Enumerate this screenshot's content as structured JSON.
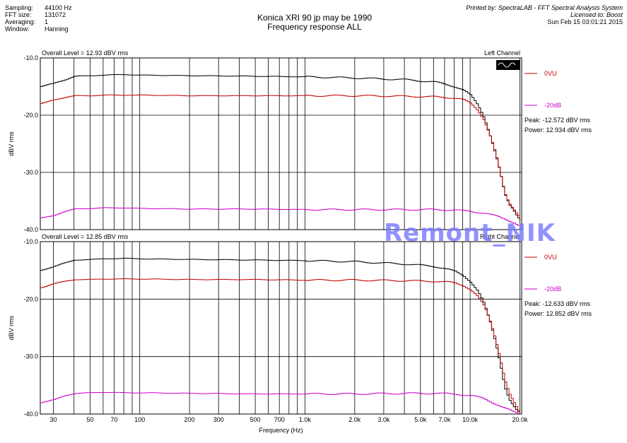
{
  "header": {
    "info": [
      {
        "label": "Sampling:",
        "value": "44100 Hz"
      },
      {
        "label": "FFT size:",
        "value": "131072"
      },
      {
        "label": "Averaging:",
        "value": "1"
      },
      {
        "label": "Window:",
        "value": "Hanning"
      }
    ],
    "title_line1": "Konica XRI 90 jp may be 1990",
    "title_line2": "Frequency response ALL",
    "printed_by": "Printed by: SpectraLAB - FFT Spectral Analysis System",
    "licensed_to": "Licensed to: Boost",
    "timestamp": "Sun Feb 15 03:01:21 2015"
  },
  "watermark": "Remont_NIK",
  "colors": {
    "black": "#000000",
    "red": "#c00000",
    "magenta": "#cc00cc",
    "grid": "#000000"
  },
  "chart_data": [
    {
      "type": "line",
      "overall_level": "Overall Level = 12.93 dBV rms",
      "channel": "Left Channel",
      "ylabel": "dBV rms",
      "xlabel": "",
      "x_scale": "log",
      "xlim": [
        25,
        20500
      ],
      "ylim": [
        -40,
        -10
      ],
      "yticks": [
        "-10.0",
        "-20.0",
        "-30.0",
        "-40.0"
      ],
      "legend": [
        {
          "name": "0VU",
          "color": "#c00000"
        },
        {
          "name": "-20dB",
          "color": "#cc00cc"
        }
      ],
      "peak": "Peak: -12.572 dBV rms",
      "power": "Power: 12.934 dBV rms",
      "series": [
        {
          "color": "#000000",
          "x": [
            25,
            30,
            35,
            40,
            50,
            60,
            80,
            100,
            200,
            500,
            1000,
            2000,
            4000,
            6000,
            7000,
            8000,
            9000,
            10000,
            11000,
            12000,
            13000,
            14000,
            15000,
            16000,
            17000,
            18000,
            19000,
            20000
          ],
          "y": [
            -15.0,
            -14.4,
            -13.8,
            -13.2,
            -13.1,
            -13.0,
            -12.9,
            -13.0,
            -13.1,
            -13.2,
            -13.3,
            -13.5,
            -13.8,
            -14.2,
            -14.6,
            -15.0,
            -15.6,
            -16.6,
            -18.2,
            -20.3,
            -23.3,
            -26.6,
            -30.0,
            -33.8,
            -35.6,
            -36.4,
            -37.5,
            -38.3
          ]
        },
        {
          "color": "#c00000",
          "x": [
            25,
            30,
            35,
            40,
            50,
            60,
            80,
            100,
            200,
            500,
            1000,
            2000,
            4000,
            6000,
            7000,
            8000,
            9000,
            10000,
            11000,
            12000,
            13000,
            14000,
            15000,
            16000,
            17000,
            18000,
            19000,
            20000
          ],
          "y": [
            -18.0,
            -17.3,
            -16.9,
            -16.6,
            -16.6,
            -16.5,
            -16.5,
            -16.5,
            -16.6,
            -16.6,
            -16.6,
            -16.6,
            -16.7,
            -16.8,
            -16.9,
            -17.0,
            -17.3,
            -18.0,
            -19.1,
            -20.8,
            -23.4,
            -26.4,
            -30.0,
            -33.6,
            -35.3,
            -36.2,
            -37.1,
            -38.0
          ]
        },
        {
          "color": "#cc00cc",
          "x": [
            25,
            30,
            35,
            40,
            50,
            60,
            80,
            100,
            200,
            500,
            1000,
            2000,
            4000,
            6000,
            8000,
            10000,
            12000,
            14000,
            16000,
            18000,
            20000
          ],
          "y": [
            -38.0,
            -37.5,
            -36.8,
            -36.4,
            -36.3,
            -36.2,
            -36.2,
            -36.3,
            -36.4,
            -36.4,
            -36.5,
            -36.5,
            -36.5,
            -36.5,
            -36.6,
            -36.8,
            -37.1,
            -37.6,
            -38.1,
            -38.7,
            -39.5
          ]
        }
      ]
    },
    {
      "type": "line",
      "overall_level": "Overall Level = 12.85 dBV rms",
      "channel": "Right Channel",
      "ylabel": "dBV rms",
      "xlabel": "Frequency (Hz)",
      "x_scale": "log",
      "xlim": [
        25,
        20500
      ],
      "ylim": [
        -40,
        -10
      ],
      "yticks": [
        "-10.0",
        "-20.0",
        "-30.0",
        "-40.0"
      ],
      "xticks": [
        {
          "v": 30,
          "t": "30"
        },
        {
          "v": 50,
          "t": "50"
        },
        {
          "v": 70,
          "t": "70"
        },
        {
          "v": 100,
          "t": "100"
        },
        {
          "v": 200,
          "t": "200"
        },
        {
          "v": 300,
          "t": "300"
        },
        {
          "v": 500,
          "t": "500"
        },
        {
          "v": 700,
          "t": "700"
        },
        {
          "v": 1000,
          "t": "1.0k"
        },
        {
          "v": 2000,
          "t": "2.0k"
        },
        {
          "v": 3000,
          "t": "3.0k"
        },
        {
          "v": 5000,
          "t": "5.0k"
        },
        {
          "v": 7000,
          "t": "7.0k"
        },
        {
          "v": 10000,
          "t": "10.0k"
        },
        {
          "v": 20000,
          "t": "20.0k"
        }
      ],
      "legend": [
        {
          "name": "0VU",
          "color": "#c00000"
        },
        {
          "name": "-20dB",
          "color": "#cc00cc"
        }
      ],
      "peak": "Peak: -12.633 dBV rms",
      "power": "Power: 12.852 dBV rms",
      "series": [
        {
          "color": "#000000",
          "x": [
            25,
            30,
            35,
            40,
            50,
            60,
            80,
            100,
            200,
            500,
            1000,
            2000,
            4000,
            6000,
            7000,
            8000,
            9000,
            10000,
            11000,
            12000,
            13000,
            14000,
            15000,
            16000,
            17000,
            18000,
            19000,
            20000
          ],
          "y": [
            -15.0,
            -14.3,
            -13.7,
            -13.2,
            -13.1,
            -13.0,
            -12.9,
            -13.0,
            -13.1,
            -13.2,
            -13.3,
            -13.5,
            -13.9,
            -14.3,
            -14.7,
            -15.2,
            -15.9,
            -17.0,
            -18.6,
            -20.8,
            -23.8,
            -27.2,
            -31.0,
            -35.2,
            -37.4,
            -38.6,
            -39.5,
            -40.0
          ]
        },
        {
          "color": "#c00000",
          "x": [
            25,
            30,
            35,
            40,
            50,
            60,
            80,
            100,
            200,
            500,
            1000,
            2000,
            4000,
            6000,
            7000,
            8000,
            9000,
            10000,
            11000,
            12000,
            13000,
            14000,
            15000,
            16000,
            17000,
            18000,
            19000,
            20000
          ],
          "y": [
            -18.0,
            -17.3,
            -16.9,
            -16.6,
            -16.6,
            -16.5,
            -16.5,
            -16.5,
            -16.6,
            -16.6,
            -16.7,
            -16.7,
            -16.8,
            -16.9,
            -17.0,
            -17.2,
            -17.6,
            -18.4,
            -19.6,
            -21.2,
            -23.6,
            -26.6,
            -30.2,
            -34.0,
            -36.4,
            -37.8,
            -39.0,
            -40.0
          ]
        },
        {
          "color": "#cc00cc",
          "x": [
            25,
            30,
            35,
            40,
            50,
            60,
            80,
            100,
            200,
            500,
            1000,
            2000,
            4000,
            6000,
            8000,
            10000,
            12000,
            14000,
            16000,
            18000,
            20000
          ],
          "y": [
            -38.0,
            -37.5,
            -36.8,
            -36.4,
            -36.3,
            -36.2,
            -36.3,
            -36.3,
            -36.4,
            -36.5,
            -36.5,
            -36.5,
            -36.4,
            -36.4,
            -36.5,
            -36.8,
            -37.3,
            -38.2,
            -39.0,
            -39.6,
            -40.0
          ]
        }
      ]
    }
  ]
}
